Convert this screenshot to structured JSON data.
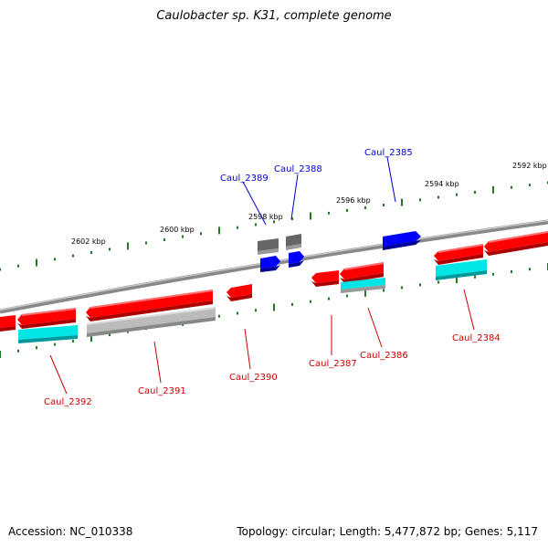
{
  "title": "Caulobacter sp. K31, complete genome",
  "footer": {
    "accession": "Accession: NC_010338",
    "summary": "Topology: circular; Length: 5,477,872 bp; Genes: 5,117"
  },
  "colors": {
    "forward_gene": "#ff0000",
    "reverse_gene": "#0000ff",
    "cds": "#00e5e5",
    "pseudo": "#bbbbbb",
    "other": "#666666",
    "backbone": "#888888",
    "ticks": "#227722",
    "forward_label": "#cc0000",
    "reverse_label": "#0000cc"
  },
  "tick_labels": [
    "2602 kbp",
    "2600 kbp",
    "2598 kbp",
    "2596 kbp",
    "2594 kbp",
    "2592 kbp"
  ],
  "gene_labels": {
    "caul_2385": "Caul_2385",
    "caul_2388": "Caul_2388",
    "caul_2389": "Caul_2389",
    "caul_2392": "Caul_2392",
    "caul_2391": "Caul_2391",
    "caul_2390": "Caul_2390",
    "caul_2387": "Caul_2387",
    "caul_2386": "Caul_2386",
    "caul_2384": "Caul_2384"
  }
}
